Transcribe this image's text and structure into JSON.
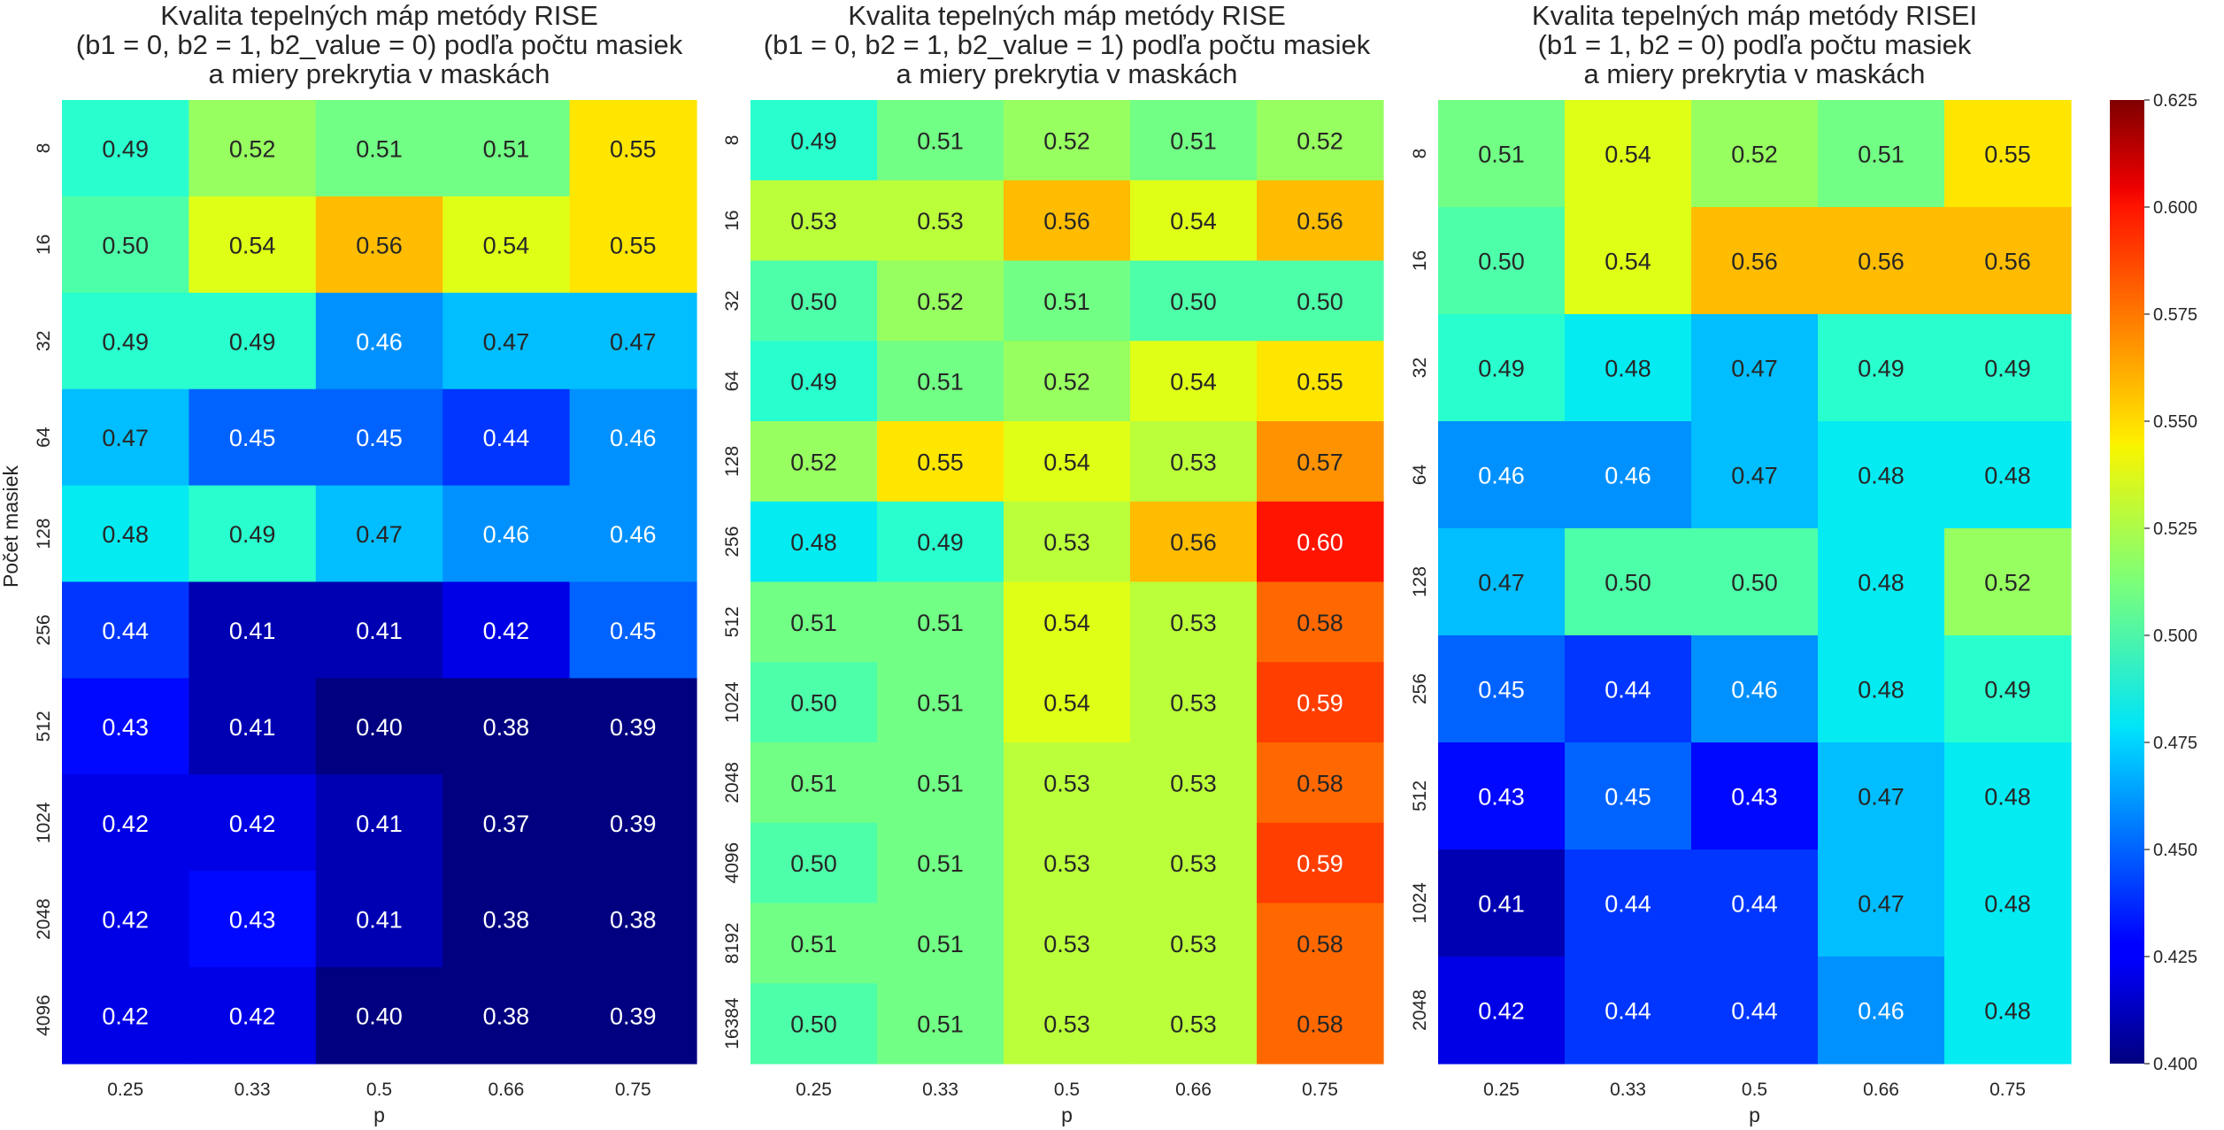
{
  "chart_data": [
    {
      "type": "heatmap",
      "title": [
        "Kvalita tepelných máp metódy RISE",
        "(b1 = 0, b2 = 1, b2_value = 0) podľa počtu masiek",
        "a miery prekrytia v maskách"
      ],
      "xlabel": "p",
      "ylabel": "Počet masiek",
      "x": [
        "0.25",
        "0.33",
        "0.5",
        "0.66",
        "0.75"
      ],
      "y": [
        "8",
        "16",
        "32",
        "64",
        "128",
        "256",
        "512",
        "1024",
        "2048",
        "4096"
      ],
      "values": [
        [
          0.49,
          0.52,
          0.51,
          0.51,
          0.55
        ],
        [
          0.5,
          0.54,
          0.56,
          0.54,
          0.55
        ],
        [
          0.49,
          0.49,
          0.46,
          0.47,
          0.47
        ],
        [
          0.47,
          0.45,
          0.45,
          0.44,
          0.46
        ],
        [
          0.48,
          0.49,
          0.47,
          0.46,
          0.46
        ],
        [
          0.44,
          0.41,
          0.41,
          0.42,
          0.45
        ],
        [
          0.43,
          0.41,
          0.4,
          0.38,
          0.39
        ],
        [
          0.42,
          0.42,
          0.41,
          0.37,
          0.39
        ],
        [
          0.42,
          0.43,
          0.41,
          0.38,
          0.38
        ],
        [
          0.42,
          0.42,
          0.4,
          0.38,
          0.39
        ]
      ]
    },
    {
      "type": "heatmap",
      "title": [
        "Kvalita tepelných máp metódy RISE",
        "(b1 = 0, b2 = 1, b2_value = 1) podľa počtu masiek",
        "a miery prekrytia v maskách"
      ],
      "xlabel": "p",
      "ylabel": "",
      "x": [
        "0.25",
        "0.33",
        "0.5",
        "0.66",
        "0.75"
      ],
      "y": [
        "8",
        "16",
        "32",
        "64",
        "128",
        "256",
        "512",
        "1024",
        "2048",
        "4096",
        "8192",
        "16384"
      ],
      "values": [
        [
          0.49,
          0.51,
          0.52,
          0.51,
          0.52
        ],
        [
          0.53,
          0.53,
          0.56,
          0.54,
          0.56
        ],
        [
          0.5,
          0.52,
          0.51,
          0.5,
          0.5
        ],
        [
          0.49,
          0.51,
          0.52,
          0.54,
          0.55
        ],
        [
          0.52,
          0.55,
          0.54,
          0.53,
          0.57
        ],
        [
          0.48,
          0.49,
          0.53,
          0.56,
          0.6
        ],
        [
          0.51,
          0.51,
          0.54,
          0.53,
          0.58
        ],
        [
          0.5,
          0.51,
          0.54,
          0.53,
          0.59
        ],
        [
          0.51,
          0.51,
          0.53,
          0.53,
          0.58
        ],
        [
          0.5,
          0.51,
          0.53,
          0.53,
          0.59
        ],
        [
          0.51,
          0.51,
          0.53,
          0.53,
          0.58
        ],
        [
          0.5,
          0.51,
          0.53,
          0.53,
          0.58
        ]
      ]
    },
    {
      "type": "heatmap",
      "title": [
        "Kvalita tepelných máp metódy RISEI",
        "(b1 = 1, b2 = 0) podľa počtu masiek",
        "a miery prekrytia v maskách"
      ],
      "xlabel": "p",
      "ylabel": "",
      "x": [
        "0.25",
        "0.33",
        "0.5",
        "0.66",
        "0.75"
      ],
      "y": [
        "8",
        "16",
        "32",
        "64",
        "128",
        "256",
        "512",
        "1024",
        "2048"
      ],
      "values": [
        [
          0.51,
          0.54,
          0.52,
          0.51,
          0.55
        ],
        [
          0.5,
          0.54,
          0.56,
          0.56,
          0.56
        ],
        [
          0.49,
          0.48,
          0.47,
          0.49,
          0.49
        ],
        [
          0.46,
          0.46,
          0.47,
          0.48,
          0.48
        ],
        [
          0.47,
          0.5,
          0.5,
          0.48,
          0.52
        ],
        [
          0.45,
          0.44,
          0.46,
          0.48,
          0.49
        ],
        [
          0.43,
          0.45,
          0.43,
          0.47,
          0.48
        ],
        [
          0.41,
          0.44,
          0.44,
          0.47,
          0.48
        ],
        [
          0.42,
          0.44,
          0.44,
          0.46,
          0.48
        ]
      ]
    }
  ],
  "colorbar": {
    "colormap": "jet",
    "vmin": 0.4,
    "vmax": 0.625,
    "ticks": [
      "0.400",
      "0.425",
      "0.450",
      "0.475",
      "0.500",
      "0.525",
      "0.550",
      "0.575",
      "0.600",
      "0.625"
    ]
  }
}
